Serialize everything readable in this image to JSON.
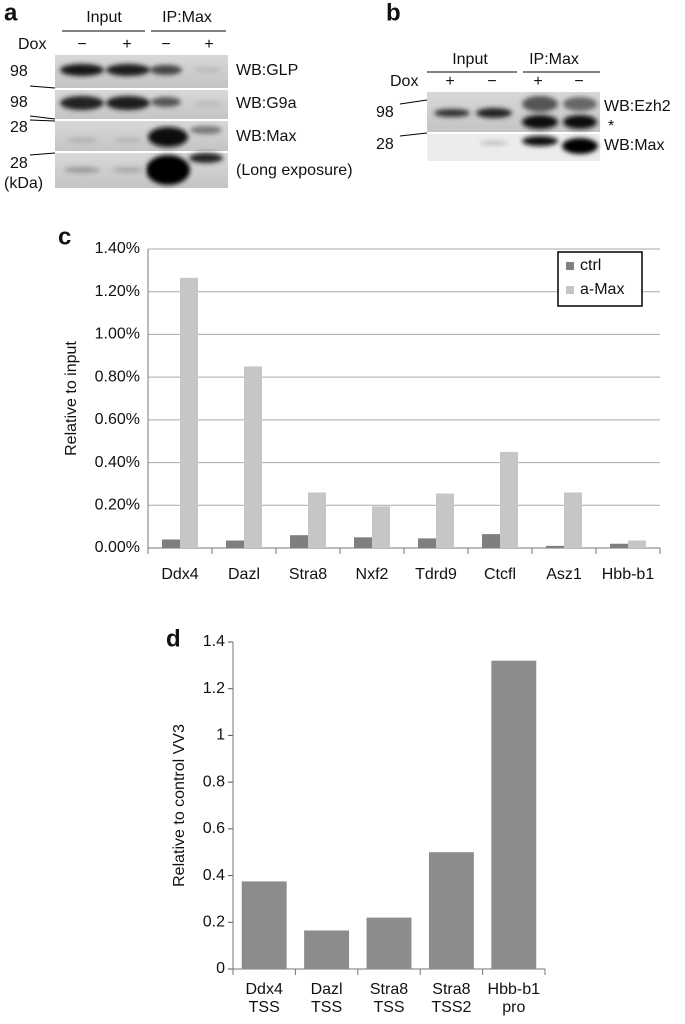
{
  "panel_a": {
    "label": "a",
    "input": "Input",
    "ip": "IP:Max",
    "dox": "Dox",
    "lanes": [
      "−",
      "+",
      "−",
      "+"
    ],
    "markers": [
      "98",
      "98",
      "28",
      "28"
    ],
    "unit": "(kDa)",
    "blots": [
      "WB:GLP",
      "WB:G9a",
      "WB:Max",
      "(Long exposure)"
    ]
  },
  "panel_b": {
    "label": "b",
    "input": "Input",
    "ip": "IP:Max",
    "dox": "Dox",
    "lanes": [
      "+",
      "−",
      "+",
      "−"
    ],
    "markers": [
      "98",
      "28"
    ],
    "blots": [
      "WB:Ezh2",
      "*",
      "WB:Max"
    ]
  },
  "chart_data": [
    {
      "type": "bar",
      "panel_label": "c",
      "y_label": "Relative to input",
      "categories": [
        "Ddx4",
        "Dazl",
        "Stra8",
        "Nxf2",
        "Tdrd9",
        "Ctcfl",
        "Asz1",
        "Hbb-b1"
      ],
      "series": [
        {
          "name": "ctrl",
          "color": "#7f7f7f",
          "values": [
            0.04,
            0.035,
            0.06,
            0.05,
            0.045,
            0.065,
            0.01,
            0.02
          ]
        },
        {
          "name": "a-Max",
          "color": "#c6c6c6",
          "values": [
            1.265,
            0.85,
            0.26,
            0.195,
            0.255,
            0.45,
            0.26,
            0.035
          ]
        }
      ],
      "ylim": [
        0,
        1.4
      ],
      "yticks": [
        {
          "value": 0,
          "label": "0.00%"
        },
        {
          "value": 0.2,
          "label": "0.20%"
        },
        {
          "value": 0.4,
          "label": "0.40%"
        },
        {
          "value": 0.6,
          "label": "0.60%"
        },
        {
          "value": 0.8,
          "label": "0.80%"
        },
        {
          "value": 1.0,
          "label": "1.00%"
        },
        {
          "value": 1.2,
          "label": "1.20%"
        },
        {
          "value": 1.4,
          "label": "1.40%"
        }
      ],
      "grid": true,
      "legend": "upper right"
    },
    {
      "type": "bar",
      "panel_label": "d",
      "y_label": "Relative  to control VV3",
      "categories": [
        "Ddx4 TSS",
        "Dazl TSS",
        "Stra8 TSS",
        "Stra8 TSS2",
        "Hbb-b1 pro"
      ],
      "values": [
        0.375,
        0.165,
        0.22,
        0.5,
        1.32
      ],
      "color": "#8c8c8c",
      "ylim": [
        0,
        1.4
      ],
      "yticks": [
        0,
        0.2,
        0.4,
        0.6,
        0.8,
        1,
        1.2,
        1.4
      ],
      "grid": false
    }
  ]
}
